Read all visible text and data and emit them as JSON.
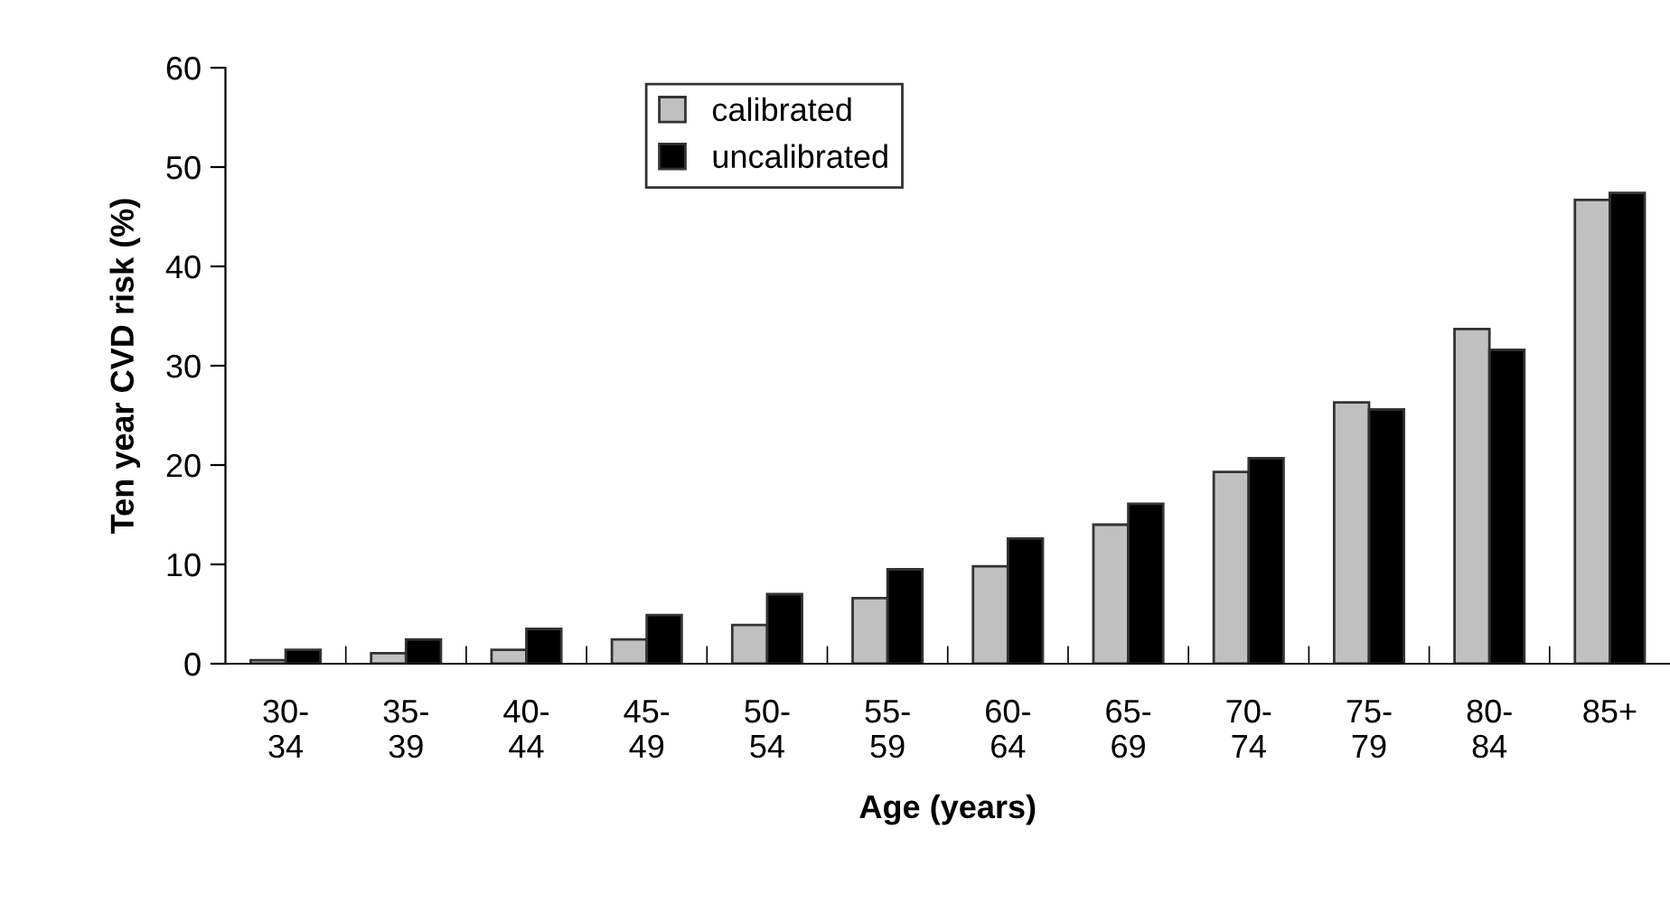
{
  "chart_data": {
    "type": "bar",
    "xlabel": "Age (years)",
    "ylabel": "Ten year CVD risk (%)",
    "categories": [
      "30-\n34",
      "35-\n39",
      "40-\n44",
      "45-\n49",
      "50-\n54",
      "55-\n59",
      "60-\n64",
      "65-\n69",
      "70-\n74",
      "75-\n79",
      "80-\n84",
      "85+"
    ],
    "series": [
      {
        "name": "calibrated",
        "color": "#c0c0c0",
        "values": [
          0.35,
          1.05,
          1.4,
          2.45,
          3.9,
          6.6,
          9.8,
          14.0,
          19.3,
          26.3,
          33.7,
          46.7
        ]
      },
      {
        "name": "uncalibrated",
        "color": "#000000",
        "values": [
          1.4,
          2.45,
          3.5,
          4.9,
          7.0,
          9.5,
          12.6,
          16.1,
          20.7,
          25.6,
          31.6,
          47.4
        ]
      }
    ],
    "ylim": [
      0,
      60
    ],
    "yticks": [
      0,
      10,
      20,
      30,
      40,
      50,
      60
    ],
    "grid": false,
    "legend": "top center"
  }
}
